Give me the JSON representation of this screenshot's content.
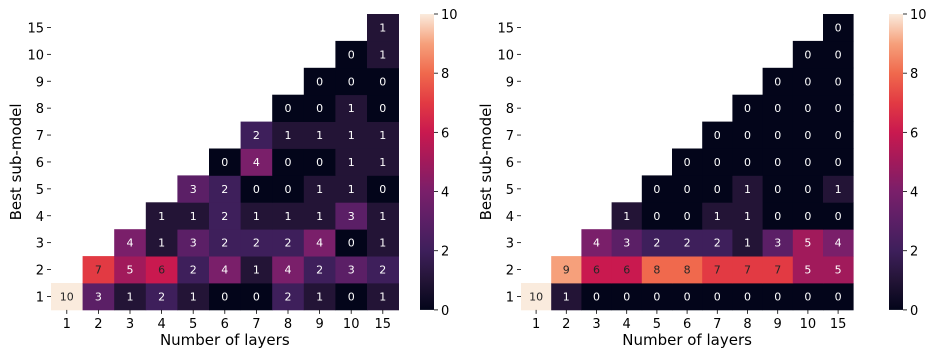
{
  "chart_data": [
    {
      "type": "heatmap",
      "xlabel": "Number of layers",
      "ylabel": "Best sub-model",
      "x_categories": [
        "1",
        "2",
        "3",
        "4",
        "5",
        "6",
        "7",
        "8",
        "9",
        "10",
        "15"
      ],
      "y_categories": [
        "1",
        "2",
        "3",
        "4",
        "5",
        "6",
        "7",
        "8",
        "9",
        "10",
        "15"
      ],
      "colorbar": {
        "min": 0,
        "max": 10,
        "ticks": [
          "0",
          "2",
          "4",
          "6",
          "8",
          "10"
        ]
      },
      "values": [
        [
          10,
          3,
          1,
          2,
          1,
          0,
          0,
          2,
          1,
          0,
          1
        ],
        [
          null,
          7,
          5,
          6,
          2,
          4,
          1,
          4,
          2,
          3,
          2
        ],
        [
          null,
          null,
          4,
          1,
          3,
          2,
          2,
          2,
          4,
          0,
          1
        ],
        [
          null,
          null,
          null,
          1,
          1,
          2,
          1,
          1,
          1,
          3,
          1
        ],
        [
          null,
          null,
          null,
          null,
          3,
          2,
          0,
          0,
          1,
          1,
          0
        ],
        [
          null,
          null,
          null,
          null,
          null,
          0,
          4,
          0,
          0,
          1,
          1
        ],
        [
          null,
          null,
          null,
          null,
          null,
          null,
          2,
          1,
          1,
          1,
          1
        ],
        [
          null,
          null,
          null,
          null,
          null,
          null,
          null,
          0,
          0,
          1,
          0
        ],
        [
          null,
          null,
          null,
          null,
          null,
          null,
          null,
          null,
          0,
          0,
          0
        ],
        [
          null,
          null,
          null,
          null,
          null,
          null,
          null,
          null,
          null,
          0,
          1
        ],
        [
          null,
          null,
          null,
          null,
          null,
          null,
          null,
          null,
          null,
          null,
          1
        ]
      ]
    },
    {
      "type": "heatmap",
      "xlabel": "Number of layers",
      "ylabel": "Best sub-model",
      "x_categories": [
        "1",
        "2",
        "3",
        "4",
        "5",
        "6",
        "7",
        "8",
        "9",
        "10",
        "15"
      ],
      "y_categories": [
        "1",
        "2",
        "3",
        "4",
        "5",
        "6",
        "7",
        "8",
        "9",
        "10",
        "15"
      ],
      "colorbar": {
        "min": 0,
        "max": 10,
        "ticks": [
          "0",
          "2",
          "4",
          "6",
          "8",
          "10"
        ]
      },
      "values": [
        [
          10,
          1,
          0,
          0,
          0,
          0,
          0,
          0,
          0,
          0,
          0
        ],
        [
          null,
          9,
          6,
          6,
          8,
          8,
          7,
          7,
          7,
          5,
          5
        ],
        [
          null,
          null,
          4,
          3,
          2,
          2,
          2,
          1,
          3,
          5,
          4
        ],
        [
          null,
          null,
          null,
          1,
          0,
          0,
          1,
          1,
          0,
          0,
          0
        ],
        [
          null,
          null,
          null,
          null,
          0,
          0,
          0,
          1,
          0,
          0,
          1
        ],
        [
          null,
          null,
          null,
          null,
          null,
          0,
          0,
          0,
          0,
          0,
          0
        ],
        [
          null,
          null,
          null,
          null,
          null,
          null,
          0,
          0,
          0,
          0,
          0
        ],
        [
          null,
          null,
          null,
          null,
          null,
          null,
          null,
          0,
          0,
          0,
          0
        ],
        [
          null,
          null,
          null,
          null,
          null,
          null,
          null,
          null,
          0,
          0,
          0
        ],
        [
          null,
          null,
          null,
          null,
          null,
          null,
          null,
          null,
          null,
          0,
          0
        ],
        [
          null,
          null,
          null,
          null,
          null,
          null,
          null,
          null,
          null,
          null,
          0
        ]
      ]
    }
  ]
}
